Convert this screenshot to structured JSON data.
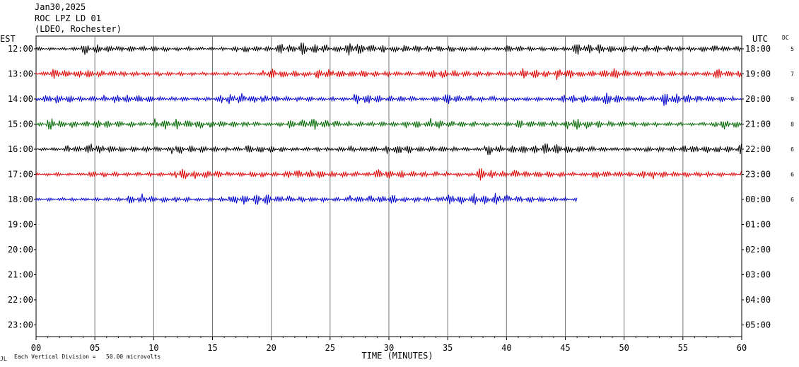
{
  "header": {
    "date": "Jan30,2025",
    "station": "ROC LPZ LD 01",
    "network": "(LDEO, Rochester)"
  },
  "left_zone": "EST",
  "right_zone": "UTC",
  "dc_label": "DC",
  "footer": {
    "corner": "JL",
    "scale": "Each Vertical Division =   50.00 microvolts"
  },
  "chart_data": {
    "type": "line",
    "title": "",
    "xlabel": "TIME (MINUTES)",
    "ylabel": "",
    "xlim": [
      0,
      60
    ],
    "x_ticks": [
      0,
      5,
      10,
      15,
      20,
      25,
      30,
      35,
      40,
      45,
      50,
      55,
      60
    ],
    "x_tick_labels": [
      "00",
      "05",
      "10",
      "15",
      "20",
      "25",
      "30",
      "35",
      "40",
      "45",
      "50",
      "55",
      "60"
    ],
    "grid": "vertical every 5 minutes",
    "rows": [
      {
        "est": "12:00",
        "utc": "18:00",
        "dc": "5",
        "color": "#000000",
        "end_minute": 60
      },
      {
        "est": "13:00",
        "utc": "19:00",
        "dc": "7",
        "color": "#dd0000",
        "end_minute": 60
      },
      {
        "est": "14:00",
        "utc": "20:00",
        "dc": "9",
        "color": "#0000cc",
        "end_minute": 60
      },
      {
        "est": "15:00",
        "utc": "21:00",
        "dc": "8",
        "color": "#006600",
        "end_minute": 60
      },
      {
        "est": "16:00",
        "utc": "22:00",
        "dc": "6",
        "color": "#000000",
        "end_minute": 60
      },
      {
        "est": "17:00",
        "utc": "23:00",
        "dc": "6",
        "color": "#dd0000",
        "end_minute": 60
      },
      {
        "est": "18:00",
        "utc": "00:00",
        "dc": "6",
        "color": "#0000cc",
        "end_minute": 46
      },
      {
        "est": "19:00",
        "utc": "01:00",
        "dc": "",
        "color": "#000000",
        "end_minute": 0
      },
      {
        "est": "20:00",
        "utc": "02:00",
        "dc": "",
        "color": "#dd0000",
        "end_minute": 0
      },
      {
        "est": "21:00",
        "utc": "03:00",
        "dc": "",
        "color": "#0000cc",
        "end_minute": 0
      },
      {
        "est": "22:00",
        "utc": "04:00",
        "dc": "",
        "color": "#006600",
        "end_minute": 0
      },
      {
        "est": "23:00",
        "utc": "05:00",
        "dc": "",
        "color": "#000000",
        "end_minute": 0
      }
    ]
  }
}
